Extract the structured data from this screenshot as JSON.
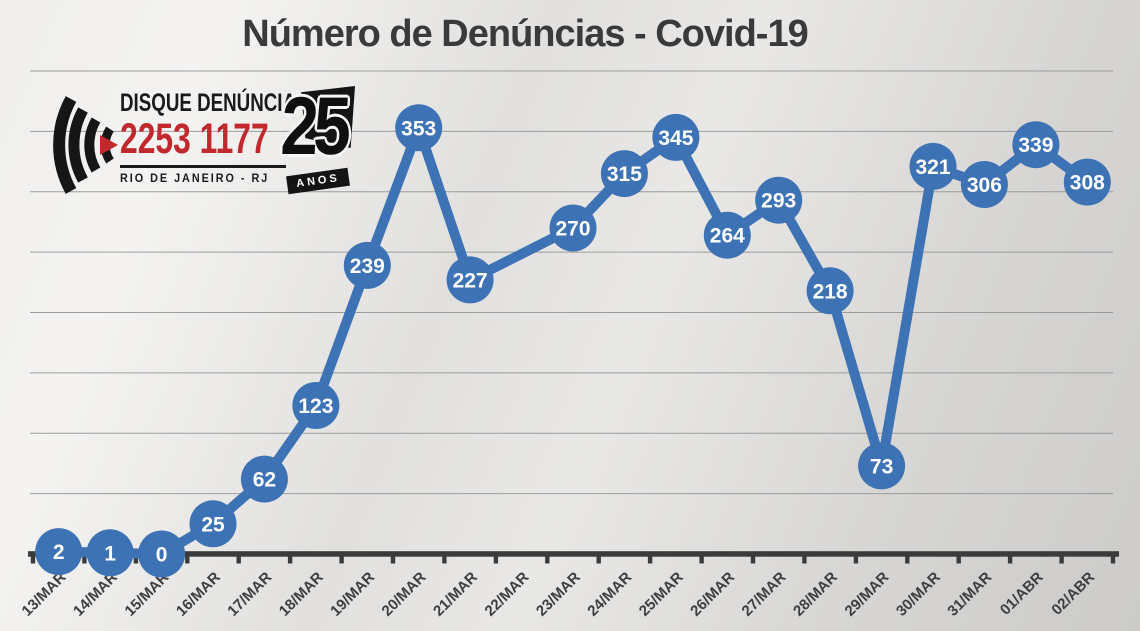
{
  "title": "Número de Denúncias - Covid-19",
  "logo": {
    "line1": "DISQUE DENÚNCIA",
    "phone": "2253 1177",
    "line3": "RIO DE JANEIRO - RJ",
    "badge_number": "25",
    "badge_text": "ANOS"
  },
  "colors": {
    "series": "#3d73b5",
    "data_label": "#ffffff",
    "axis": "#3b3b3b",
    "gridline": "#909090",
    "tick_label": "#3f3f3f",
    "title_text": "#3a3a3a",
    "logo_red": "#c1292e",
    "logo_black": "#141414"
  },
  "chart_data": {
    "type": "line",
    "title": "Número de Denúncias - Covid-19",
    "categories": [
      "13/MAR",
      "14/MAR",
      "15/MAR",
      "16/MAR",
      "17/MAR",
      "18/MAR",
      "19/MAR",
      "20/MAR",
      "21/MAR",
      "22/MAR",
      "23/MAR",
      "24/MAR",
      "25/MAR",
      "26/MAR",
      "27/MAR",
      "28/MAR",
      "29/MAR",
      "30/MAR",
      "31/MAR",
      "01/ABR",
      "02/ABR"
    ],
    "values": [
      2,
      1,
      0,
      25,
      62,
      123,
      239,
      353,
      227,
      null,
      270,
      315,
      345,
      264,
      293,
      218,
      73,
      321,
      306,
      339,
      308
    ],
    "xlabel": "",
    "ylabel": "",
    "ylim": [
      0,
      400
    ],
    "gridline_step": 50,
    "grid": true,
    "legend": false,
    "marker_labels": true,
    "x_label_rotation": 45,
    "note": "no data point plotted for 22/MAR; line connects 21/MAR directly to 23/MAR"
  }
}
